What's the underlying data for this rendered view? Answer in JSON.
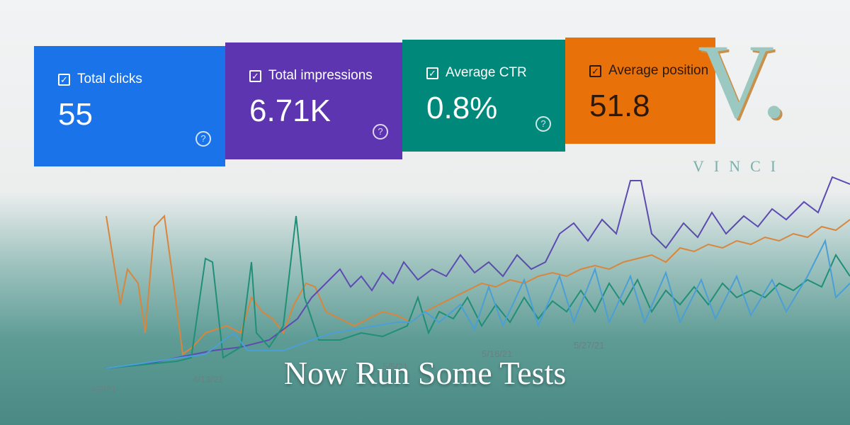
{
  "cards": [
    {
      "label": "Total clicks",
      "value": "55"
    },
    {
      "label": "Total impressions",
      "value": "6.71K"
    },
    {
      "label": "Average CTR",
      "value": "0.8%"
    },
    {
      "label": "Average position",
      "value": "51.8"
    }
  ],
  "dates": [
    "4/2/21",
    "4/13/21",
    "5/5/21",
    "5/16/21",
    "5/27/21"
  ],
  "headline": "Now Run Some Tests",
  "logo": {
    "mark": "V.",
    "name": "VINCI"
  }
}
